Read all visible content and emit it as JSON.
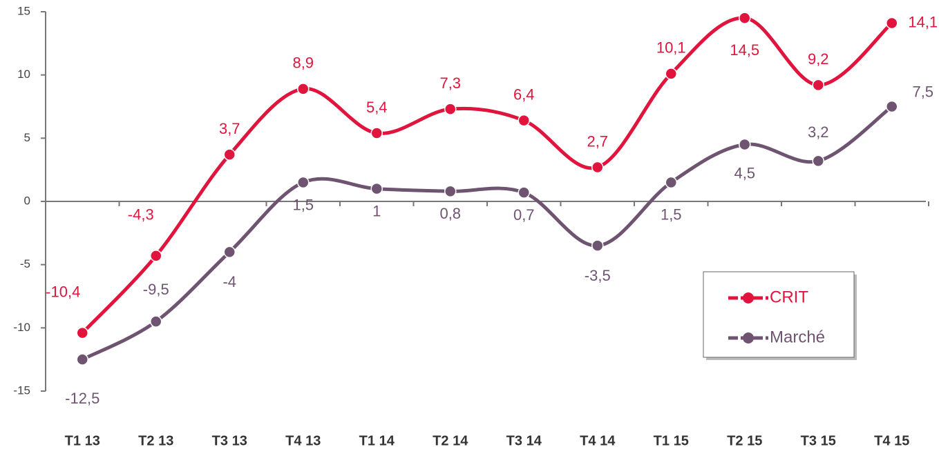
{
  "chart_data": {
    "type": "line",
    "categories": [
      "T1 13",
      "T2 13",
      "T3 13",
      "T4 13",
      "T1 14",
      "T2 14",
      "T3 14",
      "T4 14",
      "T1 15",
      "T2 15",
      "T3 15",
      "T4 15"
    ],
    "series": [
      {
        "name": "CRIT",
        "color": "#e0143c",
        "values": [
          -10.4,
          -4.3,
          3.7,
          8.9,
          5.4,
          7.3,
          6.4,
          2.7,
          10.1,
          14.5,
          9.2,
          14.1
        ],
        "value_labels": [
          "-10,4",
          "-4,3",
          "3,7",
          "8,9",
          "5,4",
          "7,3",
          "6,4",
          "2,7",
          "10,1",
          "14,5",
          "9,2",
          "14,1"
        ]
      },
      {
        "name": "Marché",
        "color": "#6e5470",
        "values": [
          -12.5,
          -9.5,
          -4,
          1.5,
          1,
          0.8,
          0.7,
          -3.5,
          1.5,
          4.5,
          3.2,
          7.5
        ],
        "value_labels": [
          "-12,5",
          "-9,5",
          "-4",
          "1,5",
          "1",
          "0,8",
          "0,7",
          "-3,5",
          "1,5",
          "4,5",
          "3,2",
          "7,5"
        ]
      }
    ],
    "ylim": [
      -15,
      15
    ],
    "yticks": [
      -15,
      -10,
      -5,
      0,
      5,
      10,
      15
    ],
    "legend": "lower right",
    "smooth": true
  }
}
